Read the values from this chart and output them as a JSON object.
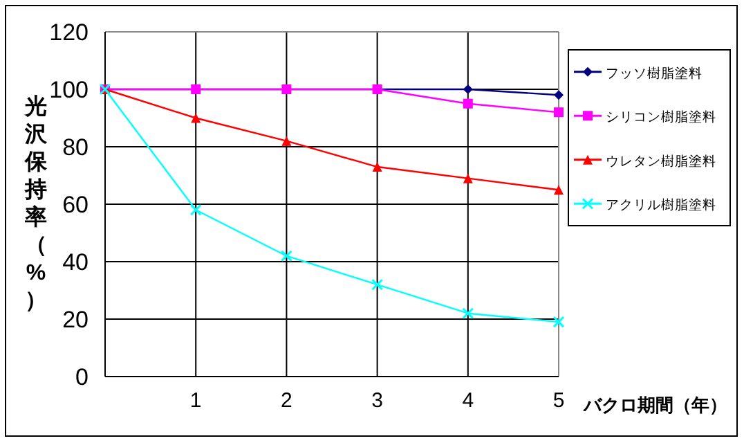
{
  "chart_data": {
    "type": "line",
    "ylabel": "光沢保持率（%）",
    "xlabel": "バクロ期間（年）",
    "x": [
      0,
      1,
      2,
      3,
      4,
      5
    ],
    "xlim": [
      0,
      5
    ],
    "xticks": [
      1,
      2,
      3,
      4,
      5
    ],
    "ylim": [
      0,
      120
    ],
    "yticks": [
      0,
      20,
      40,
      60,
      80,
      100,
      120
    ],
    "grid": true,
    "legend": "right",
    "series": [
      {
        "name": "フッソ樹脂塗料",
        "color": "#000080",
        "marker": "diamond",
        "values": [
          100,
          100,
          100,
          100,
          100,
          98
        ]
      },
      {
        "name": "シリコン樹脂塗料",
        "color": "#ff00ff",
        "marker": "square",
        "values": [
          100,
          100,
          100,
          100,
          95,
          92
        ]
      },
      {
        "name": "ウレタン樹脂塗料",
        "color": "#ff0000",
        "marker": "triangle",
        "values": [
          100,
          90,
          82,
          73,
          69,
          65
        ]
      },
      {
        "name": "アクリル樹脂塗料",
        "color": "#00ffff",
        "marker": "cross",
        "values": [
          100,
          58,
          42,
          32,
          22,
          19
        ]
      }
    ]
  }
}
